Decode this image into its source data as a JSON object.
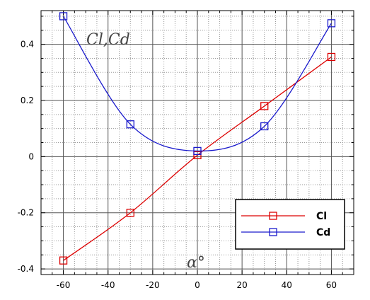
{
  "chart_data": {
    "type": "line",
    "title": "",
    "ylabel": "Cl,Cd",
    "xlabel": "α°",
    "xlim": [
      -70,
      70
    ],
    "ylim": [
      -0.42,
      0.52
    ],
    "xticks": [
      -60,
      -40,
      -20,
      0,
      20,
      40,
      60
    ],
    "xtick_labels": [
      "-60",
      "-40",
      "-20",
      "0",
      "20",
      "40",
      "60"
    ],
    "yticks": [
      -0.4,
      -0.2,
      0,
      0.2,
      0.4
    ],
    "ytick_labels": [
      "-0.4",
      "-0.2",
      "0",
      "0.2",
      "0.4"
    ],
    "grid": true,
    "legend_position": "bottom-right",
    "series": [
      {
        "name": "Cl",
        "color": "#dd0000",
        "x": [
          -60,
          -30,
          0,
          30,
          60
        ],
        "y": [
          -0.37,
          -0.2,
          0.005,
          0.18,
          0.355
        ]
      },
      {
        "name": "Cd",
        "color": "#1a1acc",
        "x": [
          -60,
          -30,
          0,
          30,
          60
        ],
        "y": [
          0.5,
          0.115,
          0.02,
          0.108,
          0.475
        ]
      }
    ]
  }
}
